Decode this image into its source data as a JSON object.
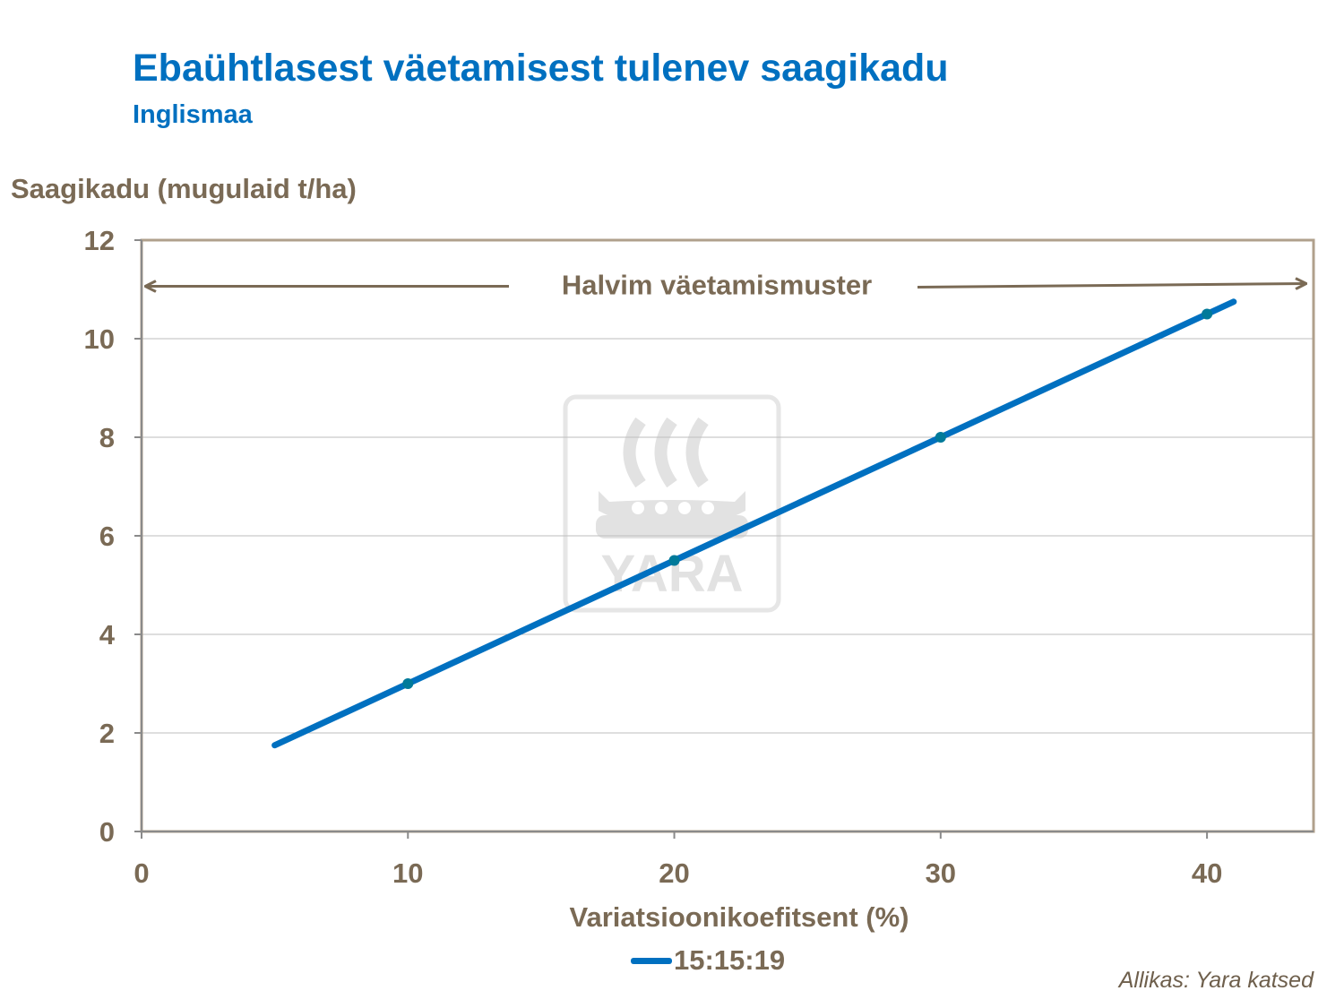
{
  "title": "Ebaühtlasest väetamisest tulenev saagikadu",
  "subtitle": "Inglismaa",
  "source": "Allikas: Yara katsed",
  "watermark": {
    "text": "YARA"
  },
  "colors": {
    "title": "#0070c0",
    "series": "#0070c0",
    "text": "#7a6a55",
    "grid": "#bdbdbd",
    "frame": "#b0a08c"
  },
  "chart_data": {
    "type": "line",
    "title": "Ebaühtlasest väetamisest tulenev saagikadu",
    "subtitle": "Inglismaa",
    "xlabel": "Variatsioonikoefitsent (%)",
    "ylabel": "Saagikadu (mugulaid t/ha)",
    "xlim": [
      0,
      44
    ],
    "ylim": [
      0,
      12
    ],
    "xticks": [
      0,
      10,
      20,
      30,
      40
    ],
    "yticks": [
      0,
      2,
      4,
      6,
      8,
      10,
      12
    ],
    "grid": true,
    "legend": "bottom",
    "series": [
      {
        "name": "15:15:19",
        "color": "#0070c0",
        "x": [
          5,
          10,
          20,
          30,
          40,
          41
        ],
        "y": [
          1.75,
          3.0,
          5.5,
          8.0,
          10.5,
          10.75
        ],
        "markers": [
          {
            "x": 10,
            "y": 3.0
          },
          {
            "x": 20,
            "y": 5.5
          },
          {
            "x": 30,
            "y": 8.0
          },
          {
            "x": 40,
            "y": 10.5
          }
        ]
      }
    ],
    "annotations": [
      {
        "text": "Halvim väetamismuster",
        "y": 11.1
      }
    ]
  }
}
